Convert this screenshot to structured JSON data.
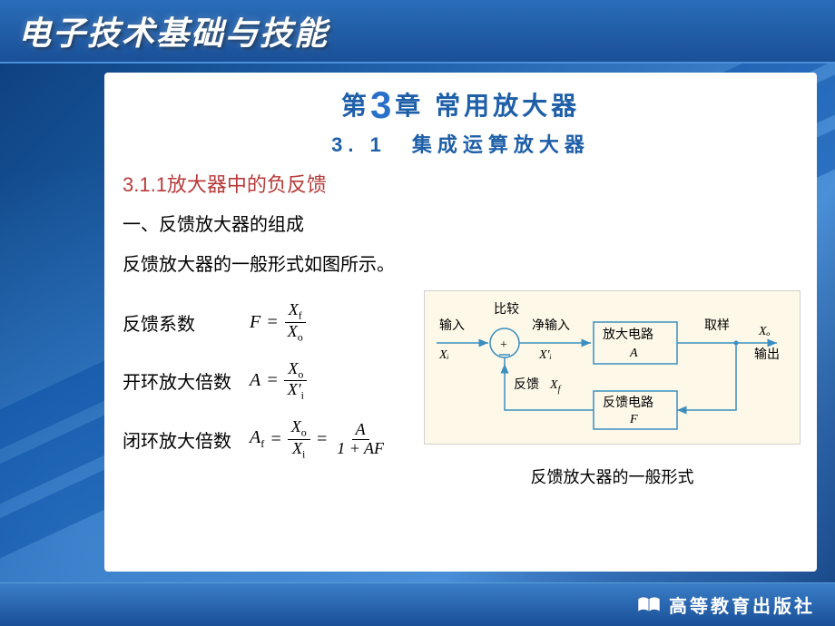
{
  "header": {
    "title": "电子技术基础与技能"
  },
  "chapter": {
    "prefix": "第",
    "number": "3",
    "suffix": "章 常用放大器",
    "subsection": "3. 1　集成运算放大器"
  },
  "section_title": "3.1.1放大器中的负反馈",
  "lines": {
    "l1": "一、反馈放大器的组成",
    "l2": "反馈放大器的一般形式如图所示。"
  },
  "formulas": [
    {
      "label": "反馈系数",
      "lhs": "F",
      "terms": [
        {
          "num": "X",
          "num_sub": "f",
          "den": "X",
          "den_sub": "o"
        }
      ]
    },
    {
      "label": "开环放大倍数",
      "lhs": "A",
      "terms": [
        {
          "num": "X",
          "num_sub": "o",
          "den": "X′",
          "den_sub": "i"
        }
      ]
    },
    {
      "label": "闭环放大倍数",
      "lhs": "A",
      "lhs_sub": "f",
      "terms": [
        {
          "num": "X",
          "num_sub": "o",
          "den": "X",
          "den_sub": "i"
        },
        {
          "num": "A",
          "den": "1 + AF"
        }
      ]
    }
  ],
  "diagram": {
    "caption": "反馈放大器的一般形式",
    "bg_color": "#fdf8e8",
    "line_color": "#3a8fc0",
    "labels": {
      "input_top": "输入",
      "input_var": "Xᵢ",
      "compare": "比较",
      "summing": "+",
      "netin_top": "净输入",
      "netin_var": "X′ᵢ",
      "amp_top": "放大电路",
      "amp_var": "A",
      "feedback": "反馈",
      "feedback_var": "X",
      "feedback_sub": "f",
      "fb_top": "反馈电路",
      "fb_var": "F",
      "sample": "取样",
      "out_var": "Xₒ",
      "out_label": "输出"
    }
  },
  "footer": {
    "publisher": "高等教育出版社"
  }
}
